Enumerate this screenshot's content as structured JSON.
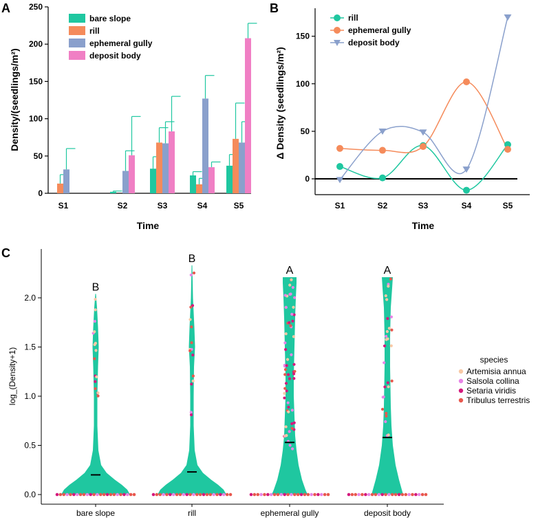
{
  "colors": {
    "teal": "#1fc7a0",
    "orange": "#f58b5b",
    "blue": "#8aa0cc",
    "pink": "#f07fc4",
    "violin": "#1fc7a0",
    "artemisia": "#f8c9a6",
    "salsola": "#e884e6",
    "setaria": "#d4197d",
    "tribulus": "#e8584e"
  },
  "chart_data": [
    {
      "panel": "A",
      "type": "bar",
      "xlabel": "Time",
      "ylabel": "Density/(seedlings/m²)",
      "ylim": [
        0,
        250
      ],
      "yticks": [
        0,
        50,
        100,
        150,
        200,
        250
      ],
      "categories": [
        "S1",
        "S2",
        "S3",
        "S4",
        "S5"
      ],
      "legend": "top-left",
      "series": [
        {
          "name": "bare slope",
          "color": "teal",
          "values": [
            0,
            2,
            33,
            24,
            37
          ],
          "errors": [
            0,
            1,
            16,
            5,
            15
          ]
        },
        {
          "name": "rill",
          "color": "orange",
          "values": [
            13,
            0,
            68,
            12,
            73
          ],
          "errors": [
            12,
            0,
            20,
            8,
            48
          ]
        },
        {
          "name": "ephemeral gully",
          "color": "blue",
          "values": [
            32,
            30,
            67,
            127,
            68
          ],
          "errors": [
            28,
            27,
            29,
            31,
            28
          ]
        },
        {
          "name": "deposit body",
          "color": "pink",
          "values": [
            0,
            51,
            83,
            35,
            208
          ],
          "errors": [
            0,
            52,
            47,
            7,
            20
          ]
        }
      ]
    },
    {
      "panel": "B",
      "type": "line",
      "xlabel": "Time",
      "ylabel": "Δ Density (seedlings/m²)",
      "ylim": [
        -25,
        175
      ],
      "yticks": [
        0,
        50,
        100,
        150
      ],
      "categories": [
        "S1",
        "S2",
        "S3",
        "S4",
        "S5"
      ],
      "legend": "top-left",
      "series": [
        {
          "name": "rill",
          "color": "teal",
          "marker": "circle",
          "values": [
            13,
            1,
            35,
            -12,
            36
          ]
        },
        {
          "name": "ephemeral gully",
          "color": "orange",
          "marker": "circle",
          "values": [
            32,
            30,
            34,
            102,
            31
          ]
        },
        {
          "name": "deposit body",
          "color": "blue",
          "marker": "triangle",
          "values": [
            -1,
            50,
            49,
            10,
            170
          ]
        }
      ]
    },
    {
      "panel": "C",
      "type": "violin",
      "xlabel": "",
      "ylabel": "log_(Density+1)",
      "ylim": [
        -0.05,
        2.4
      ],
      "yticks": [
        "0.0",
        "0.5",
        "1.0",
        "1.5",
        "2.0"
      ],
      "categories": [
        "bare slope",
        "rill",
        "ephemeral gully",
        "deposit body"
      ],
      "groups": [
        {
          "name": "bare slope",
          "letter": "B",
          "mean": 0.2,
          "max": 2.04
        },
        {
          "name": "rill",
          "letter": "B",
          "mean": 0.23,
          "max": 2.33
        },
        {
          "name": "ephemeral gully",
          "letter": "A",
          "mean": 0.53,
          "max": 2.21
        },
        {
          "name": "deposit body",
          "letter": "A",
          "mean": 0.58,
          "max": 2.21
        }
      ],
      "legend_title": "species",
      "legend": [
        {
          "name": "Artemisia annua",
          "color": "artemisia"
        },
        {
          "name": "Salsola collina",
          "color": "salsola"
        },
        {
          "name": "Setaria viridis",
          "color": "setaria"
        },
        {
          "name": "Tribulus terrestris",
          "color": "tribulus"
        }
      ]
    }
  ]
}
